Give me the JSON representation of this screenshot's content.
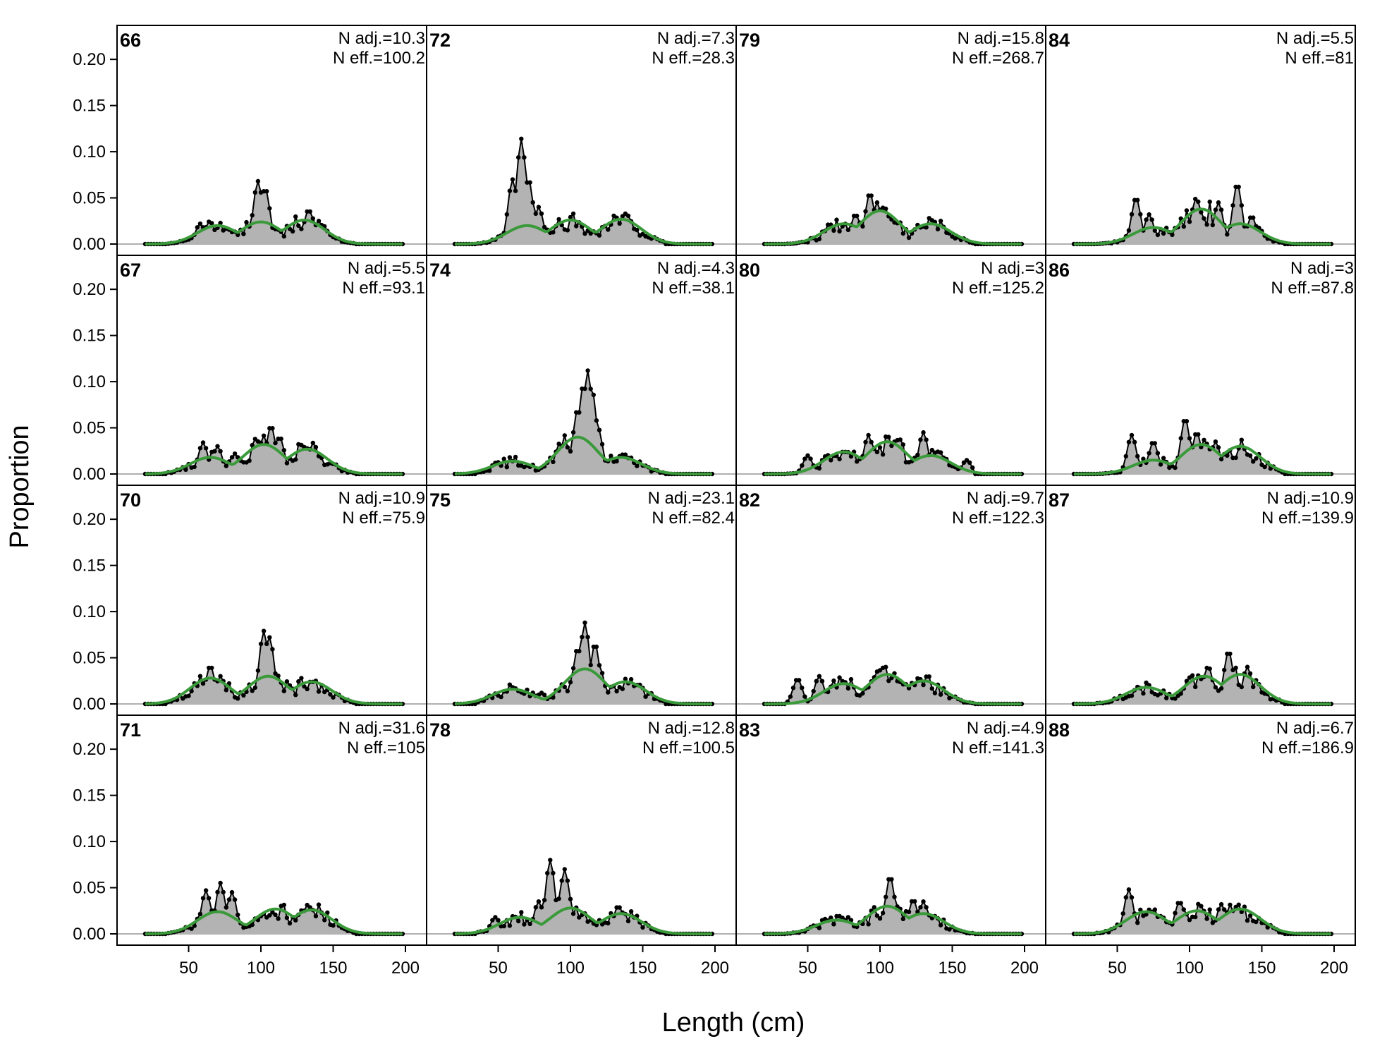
{
  "chart_data": {
    "type": "line",
    "xlabel": "Length (cm)",
    "ylabel": "Proportion",
    "xlim": [
      20,
      200
    ],
    "ylim": [
      0,
      0.22
    ],
    "x_ticks": [
      50,
      100,
      150,
      200
    ],
    "y_ticks": [
      0.0,
      0.05,
      0.1,
      0.15,
      0.2
    ],
    "x_tick_labels": [
      "50",
      "100",
      "150",
      "200"
    ],
    "y_tick_labels": [
      "0.00",
      "0.05",
      "0.10",
      "0.15",
      "0.20"
    ],
    "layout": "4 rows x 4 columns, column-major",
    "colors": {
      "observed_fill": "#b3b3b3",
      "observed_line": "#000000",
      "expected": "#3a9a3a",
      "baseline": "#b0b0b0"
    },
    "series_meta": [
      {
        "name": "observed",
        "style": "grey filled area with black points and line"
      },
      {
        "name": "expected",
        "style": "green line"
      }
    ],
    "panels": [
      {
        "label": "66",
        "n_adj": "N adj.=10.3",
        "n_eff": "N eff.=100.2",
        "observed_peaks": [
          [
            58,
            0.022
          ],
          [
            72,
            0.018
          ],
          [
            98,
            0.068
          ],
          [
            103,
            0.06
          ],
          [
            133,
            0.037
          ],
          [
            140,
            0.025
          ]
        ],
        "expected_peaks": [
          [
            70,
            0.02
          ],
          [
            100,
            0.024
          ],
          [
            130,
            0.026
          ]
        ]
      },
      {
        "label": "67",
        "n_adj": "N adj.=5.5",
        "n_eff": "N eff.=93.1",
        "observed_peaks": [
          [
            60,
            0.034
          ],
          [
            70,
            0.03
          ],
          [
            82,
            0.022
          ],
          [
            107,
            0.052
          ],
          [
            113,
            0.04
          ],
          [
            133,
            0.028
          ]
        ],
        "expected_peaks": [
          [
            65,
            0.018
          ],
          [
            102,
            0.032
          ],
          [
            132,
            0.027
          ]
        ]
      },
      {
        "label": "70",
        "n_adj": "N adj.=10.9",
        "n_eff": "N eff.=75.9",
        "observed_peaks": [
          [
            65,
            0.041
          ],
          [
            72,
            0.03
          ],
          [
            102,
            0.079
          ],
          [
            106,
            0.072
          ],
          [
            120,
            0.02
          ],
          [
            135,
            0.025
          ]
        ],
        "expected_peaks": [
          [
            65,
            0.028
          ],
          [
            105,
            0.03
          ],
          [
            135,
            0.024
          ]
        ]
      },
      {
        "label": "71",
        "n_adj": "N adj.=31.6",
        "n_eff": "N eff.=105",
        "observed_peaks": [
          [
            62,
            0.047
          ],
          [
            72,
            0.055
          ],
          [
            80,
            0.045
          ],
          [
            115,
            0.02
          ],
          [
            140,
            0.014
          ]
        ],
        "expected_peaks": [
          [
            70,
            0.024
          ],
          [
            110,
            0.027
          ],
          [
            135,
            0.026
          ]
        ]
      },
      {
        "label": "72",
        "n_adj": "N adj.=7.3",
        "n_eff": "N eff.=28.3",
        "observed_peaks": [
          [
            60,
            0.07
          ],
          [
            66,
            0.114
          ],
          [
            71,
            0.07
          ],
          [
            78,
            0.04
          ],
          [
            115,
            0.012
          ],
          [
            125,
            0.01
          ]
        ],
        "expected_peaks": [
          [
            70,
            0.02
          ],
          [
            100,
            0.026
          ],
          [
            135,
            0.027
          ]
        ]
      },
      {
        "label": "74",
        "n_adj": "N adj.=4.3",
        "n_eff": "N eff.=38.1",
        "observed_peaks": [
          [
            105,
            0.07
          ],
          [
            109,
            0.097
          ],
          [
            112,
            0.112
          ],
          [
            115,
            0.09
          ],
          [
            119,
            0.05
          ],
          [
            137,
            0.022
          ]
        ],
        "expected_peaks": [
          [
            60,
            0.014
          ],
          [
            105,
            0.04
          ],
          [
            135,
            0.018
          ]
        ]
      },
      {
        "label": "75",
        "n_adj": "N adj.=23.1",
        "n_eff": "N eff.=82.4",
        "observed_peaks": [
          [
            60,
            0.018
          ],
          [
            80,
            0.012
          ],
          [
            105,
            0.06
          ],
          [
            110,
            0.088
          ],
          [
            117,
            0.065
          ],
          [
            140,
            0.022
          ]
        ],
        "expected_peaks": [
          [
            60,
            0.016
          ],
          [
            110,
            0.038
          ],
          [
            138,
            0.024
          ]
        ]
      },
      {
        "label": "78",
        "n_adj": "N adj.=12.8",
        "n_eff": "N eff.=100.5",
        "observed_peaks": [
          [
            48,
            0.018
          ],
          [
            78,
            0.035
          ],
          [
            86,
            0.08
          ],
          [
            93,
            0.04
          ],
          [
            96,
            0.07
          ],
          [
            133,
            0.03
          ]
        ],
        "expected_peaks": [
          [
            65,
            0.018
          ],
          [
            100,
            0.028
          ],
          [
            135,
            0.022
          ]
        ]
      },
      {
        "label": "79",
        "n_adj": "N adj.=15.8",
        "n_eff": "N eff.=268.7",
        "observed_peaks": [
          [
            65,
            0.022
          ],
          [
            83,
            0.032
          ],
          [
            93,
            0.055
          ],
          [
            98,
            0.045
          ],
          [
            137,
            0.025
          ]
        ],
        "expected_peaks": [
          [
            75,
            0.022
          ],
          [
            100,
            0.036
          ],
          [
            135,
            0.022
          ]
        ]
      },
      {
        "label": "80",
        "n_adj": "N adj.=3",
        "n_eff": "N eff.=125.2",
        "observed_peaks": [
          [
            50,
            0.02
          ],
          [
            75,
            0.025
          ],
          [
            92,
            0.042
          ],
          [
            110,
            0.035
          ],
          [
            130,
            0.045
          ],
          [
            160,
            0.015
          ]
        ],
        "expected_peaks": [
          [
            75,
            0.024
          ],
          [
            105,
            0.035
          ],
          [
            135,
            0.02
          ]
        ]
      },
      {
        "label": "82",
        "n_adj": "N adj.=9.7",
        "n_eff": "N eff.=122.3",
        "observed_peaks": [
          [
            43,
            0.027
          ],
          [
            58,
            0.03
          ],
          [
            68,
            0.02
          ],
          [
            98,
            0.035
          ],
          [
            128,
            0.025
          ]
        ],
        "expected_peaks": [
          [
            75,
            0.022
          ],
          [
            105,
            0.032
          ],
          [
            130,
            0.025
          ]
        ]
      },
      {
        "label": "83",
        "n_adj": "N adj.=4.9",
        "n_eff": "N eff.=141.3",
        "observed_peaks": [
          [
            78,
            0.018
          ],
          [
            107,
            0.062
          ],
          [
            123,
            0.037
          ],
          [
            130,
            0.035
          ]
        ],
        "expected_peaks": [
          [
            70,
            0.015
          ],
          [
            105,
            0.03
          ],
          [
            130,
            0.022
          ]
        ]
      },
      {
        "label": "84",
        "n_adj": "N adj.=5.5",
        "n_eff": "N eff.=81",
        "observed_peaks": [
          [
            63,
            0.05
          ],
          [
            72,
            0.032
          ],
          [
            107,
            0.035
          ],
          [
            120,
            0.045
          ],
          [
            133,
            0.065
          ],
          [
            143,
            0.03
          ]
        ],
        "expected_peaks": [
          [
            75,
            0.018
          ],
          [
            108,
            0.038
          ],
          [
            135,
            0.022
          ]
        ]
      },
      {
        "label": "86",
        "n_adj": "N adj.=3",
        "n_eff": "N eff.=87.8",
        "observed_peaks": [
          [
            60,
            0.042
          ],
          [
            75,
            0.035
          ],
          [
            97,
            0.06
          ],
          [
            105,
            0.045
          ],
          [
            118,
            0.035
          ],
          [
            140,
            0.02
          ]
        ],
        "expected_peaks": [
          [
            75,
            0.015
          ],
          [
            108,
            0.032
          ],
          [
            135,
            0.03
          ]
        ]
      },
      {
        "label": "87",
        "n_adj": "N adj.=10.9",
        "n_eff": "N eff.=139.9",
        "observed_peaks": [
          [
            70,
            0.012
          ],
          [
            100,
            0.02
          ],
          [
            113,
            0.04
          ],
          [
            127,
            0.057
          ],
          [
            140,
            0.04
          ]
        ],
        "expected_peaks": [
          [
            70,
            0.018
          ],
          [
            110,
            0.03
          ],
          [
            135,
            0.032
          ]
        ]
      },
      {
        "label": "88",
        "n_adj": "N adj.=6.7",
        "n_eff": "N eff.=186.9",
        "observed_peaks": [
          [
            58,
            0.048
          ],
          [
            75,
            0.025
          ],
          [
            93,
            0.035
          ],
          [
            108,
            0.03
          ],
          [
            122,
            0.032
          ],
          [
            135,
            0.025
          ]
        ],
        "expected_peaks": [
          [
            70,
            0.024
          ],
          [
            105,
            0.025
          ],
          [
            135,
            0.027
          ]
        ]
      }
    ]
  }
}
